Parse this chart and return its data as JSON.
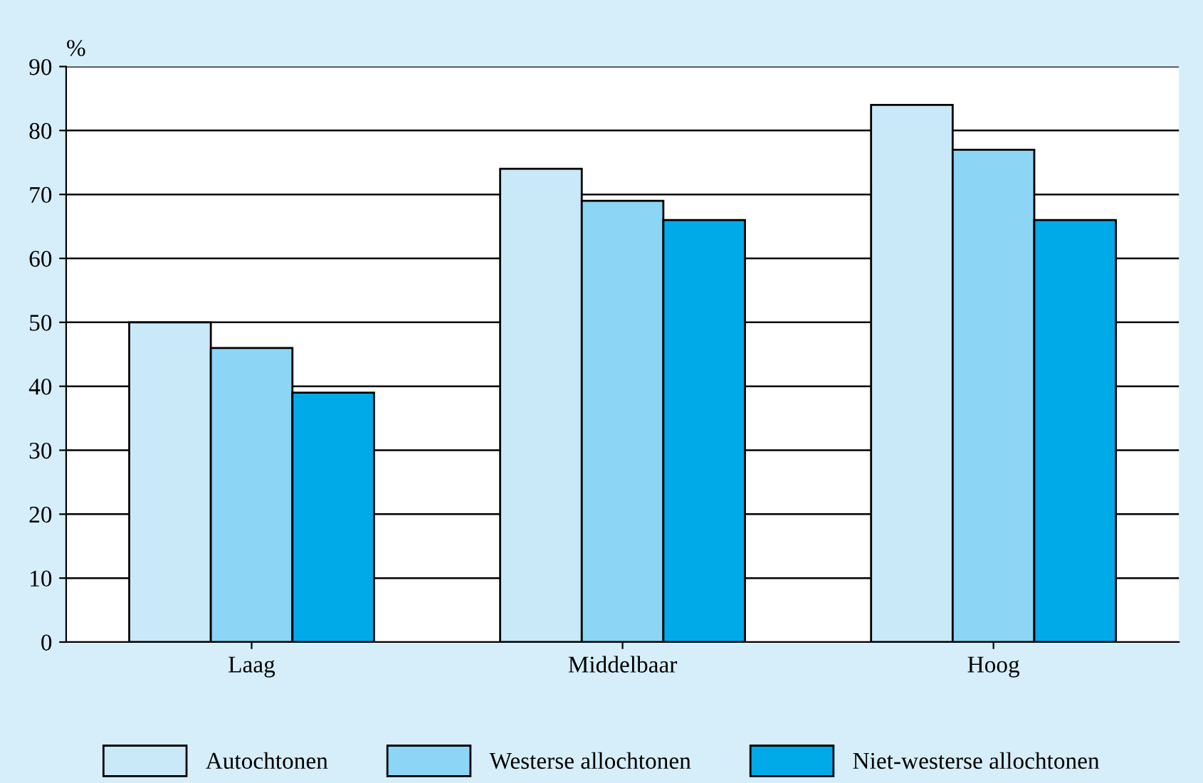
{
  "chart_data": {
    "type": "bar",
    "ylabel": "%",
    "categories": [
      "Laag",
      "Middelbaar",
      "Hoog"
    ],
    "series": [
      {
        "name": "Autochtonen",
        "color": "#c9e9f9",
        "values": [
          50,
          74,
          84
        ]
      },
      {
        "name": "Westerse allochtonen",
        "color": "#8dd5f5",
        "values": [
          46,
          69,
          77
        ]
      },
      {
        "name": "Niet-westerse allochtonen",
        "color": "#00a9e8",
        "values": [
          39,
          66,
          66
        ]
      }
    ],
    "ylim": [
      0,
      90
    ],
    "yticks": [
      0,
      10,
      20,
      30,
      40,
      50,
      60,
      70,
      80,
      90
    ],
    "grid": "y",
    "legend": "bottom"
  }
}
